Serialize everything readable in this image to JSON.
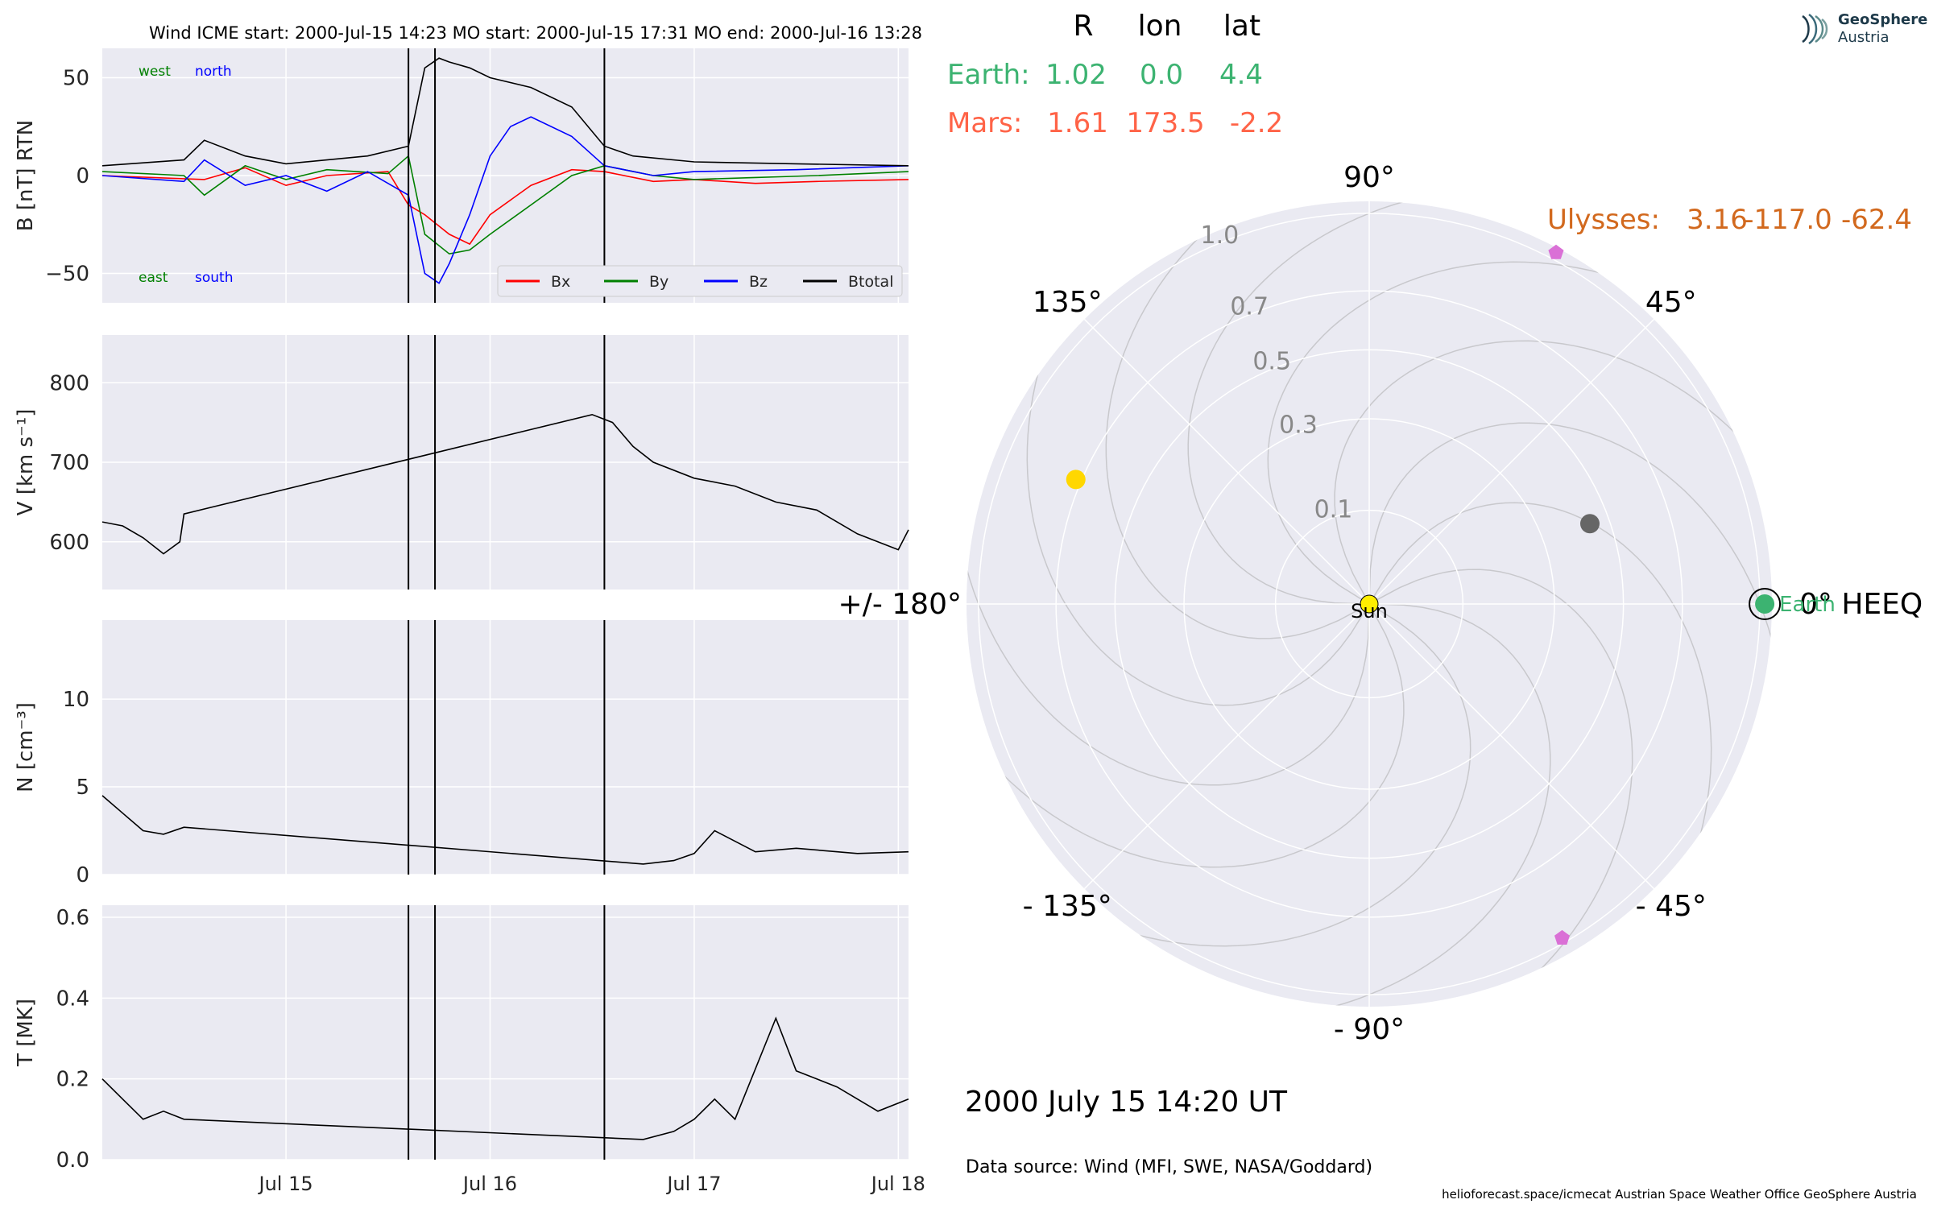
{
  "header": {
    "title": "Wind    ICME start: 2000-Jul-15 14:23   MO start: 2000-Jul-15 17:31   MO end: 2000-Jul-16 13:28",
    "date_ut": "2000 July 15  14:20 UT",
    "data_source": "Data source: Wind (MFI, SWE, NASA/Goddard)",
    "footer": "helioforecast.space/icmecat   Austrian Space Weather Office   GeoSphere Austria"
  },
  "logo": {
    "line1": "GeoSphere",
    "line2": "Austria",
    "icon": "geosphere-logo-icon"
  },
  "positions_table": {
    "columns": [
      "R",
      "lon",
      "lat"
    ],
    "rows": [
      {
        "name": "Earth:",
        "R": "1.02",
        "lon": "0.0",
        "lat": "4.4",
        "color": "#3cb371"
      },
      {
        "name": "Mars:",
        "R": "1.61",
        "lon": "173.5",
        "lat": "-2.2",
        "color": "#ff6347"
      }
    ],
    "ulysses": {
      "name": "Ulysses:",
      "R": "3.16",
      "lon": "-117.0",
      "lat": "-62.4",
      "color": "#d2691e"
    }
  },
  "chart_data": [
    {
      "type": "line",
      "panel": "B",
      "ylabel": "B [nT] RTN",
      "ylim": [
        -65,
        65
      ],
      "yticks": [
        -50,
        0,
        50
      ],
      "ytick_labels": [
        "−50",
        "0",
        "50"
      ],
      "xlim_days": [
        14.1,
        18.05
      ],
      "annotations": {
        "west": "west",
        "north": "north",
        "east": "east",
        "south": "south"
      },
      "legend": [
        "Bx",
        "By",
        "Bz",
        "Btotal"
      ],
      "legend_position": "lower-right",
      "grid": true,
      "series": [
        {
          "name": "Bx",
          "color": "#ff0000",
          "x": [
            14.1,
            14.6,
            14.8,
            15.0,
            15.2,
            15.5,
            15.6,
            15.68,
            15.8,
            15.9,
            16.0,
            16.2,
            16.4,
            16.56,
            16.8,
            17.0,
            17.3,
            17.6,
            18.05
          ],
          "y": [
            0,
            -2,
            4,
            -5,
            0,
            2,
            -15,
            -20,
            -30,
            -35,
            -20,
            -5,
            3,
            2,
            -3,
            -2,
            -4,
            -3,
            -2
          ]
        },
        {
          "name": "By",
          "color": "#008000",
          "x": [
            14.1,
            14.5,
            14.6,
            14.8,
            15.0,
            15.2,
            15.5,
            15.6,
            15.68,
            15.8,
            15.9,
            16.0,
            16.2,
            16.4,
            16.56,
            16.8,
            17.0,
            17.3,
            17.6,
            18.05
          ],
          "y": [
            2,
            0,
            -10,
            5,
            -2,
            3,
            1,
            10,
            -30,
            -40,
            -38,
            -30,
            -15,
            0,
            5,
            0,
            -2,
            -1,
            0,
            2
          ]
        },
        {
          "name": "Bz",
          "color": "#0000ff",
          "x": [
            14.1,
            14.5,
            14.6,
            14.8,
            15.0,
            15.2,
            15.4,
            15.6,
            15.68,
            15.75,
            15.8,
            15.9,
            16.0,
            16.1,
            16.2,
            16.4,
            16.56,
            16.8,
            17.0,
            17.5,
            18.05
          ],
          "y": [
            0,
            -3,
            8,
            -5,
            0,
            -8,
            2,
            -10,
            -50,
            -55,
            -45,
            -20,
            10,
            25,
            30,
            20,
            5,
            0,
            2,
            3,
            5
          ]
        },
        {
          "name": "Btotal",
          "color": "#000000",
          "x": [
            14.1,
            14.5,
            14.6,
            14.8,
            15.0,
            15.4,
            15.6,
            15.68,
            15.75,
            15.8,
            15.9,
            16.0,
            16.2,
            16.4,
            16.56,
            16.7,
            17.0,
            17.5,
            18.05
          ],
          "y": [
            5,
            8,
            18,
            10,
            6,
            10,
            15,
            55,
            60,
            58,
            55,
            50,
            45,
            35,
            15,
            10,
            7,
            6,
            5
          ]
        }
      ],
      "vlines_days": [
        15.6,
        15.73,
        16.56
      ]
    },
    {
      "type": "line",
      "panel": "V",
      "ylabel": "V [km s⁻¹]",
      "ylim": [
        540,
        860
      ],
      "yticks": [
        600,
        700,
        800
      ],
      "xlim_days": [
        14.1,
        18.05
      ],
      "grid": true,
      "series": [
        {
          "name": "V",
          "color": "#000000",
          "x": [
            14.1,
            14.2,
            14.3,
            14.4,
            14.48,
            14.5,
            16.5,
            16.6,
            16.7,
            16.8,
            17.0,
            17.2,
            17.4,
            17.6,
            17.8,
            18.0,
            18.05
          ],
          "y": [
            625,
            620,
            605,
            585,
            600,
            635,
            760,
            750,
            720,
            700,
            680,
            670,
            650,
            640,
            610,
            590,
            615
          ]
        }
      ],
      "vlines_days": [
        15.6,
        15.73,
        16.56
      ]
    },
    {
      "type": "line",
      "panel": "N",
      "ylabel": "N [cm⁻³]",
      "ylim": [
        0,
        14.5
      ],
      "yticks": [
        0,
        5,
        10
      ],
      "xlim_days": [
        14.1,
        18.05
      ],
      "grid": true,
      "series": [
        {
          "name": "N",
          "color": "#000000",
          "x": [
            14.1,
            14.2,
            14.3,
            14.4,
            14.5,
            16.75,
            16.9,
            17.0,
            17.1,
            17.3,
            17.5,
            17.8,
            18.05
          ],
          "y": [
            4.5,
            3.5,
            2.5,
            2.3,
            2.7,
            0.6,
            0.8,
            1.2,
            2.5,
            1.3,
            1.5,
            1.2,
            1.3
          ]
        }
      ],
      "vlines_days": [
        15.6,
        15.73,
        16.56
      ]
    },
    {
      "type": "line",
      "panel": "T",
      "ylabel": "T [MK]",
      "ylim": [
        0,
        0.63
      ],
      "yticks": [
        0.0,
        0.2,
        0.4,
        0.6
      ],
      "ytick_labels": [
        "0.0",
        "0.2",
        "0.4",
        "0.6"
      ],
      "xlim_days": [
        14.1,
        18.05
      ],
      "xtick_days": [
        15.0,
        16.0,
        17.0,
        18.0
      ],
      "xtick_labels": [
        "Jul 15",
        "Jul 16",
        "Jul 17",
        "Jul 18"
      ],
      "grid": true,
      "series": [
        {
          "name": "T",
          "color": "#000000",
          "x": [
            14.1,
            14.2,
            14.3,
            14.4,
            14.5,
            16.75,
            16.9,
            17.0,
            17.1,
            17.2,
            17.4,
            17.5,
            17.7,
            17.9,
            18.05
          ],
          "y": [
            0.2,
            0.15,
            0.1,
            0.12,
            0.1,
            0.05,
            0.07,
            0.1,
            0.15,
            0.1,
            0.35,
            0.22,
            0.18,
            0.12,
            0.15
          ]
        }
      ],
      "vlines_days": [
        15.6,
        15.73,
        16.56
      ]
    },
    {
      "type": "scatter",
      "panel": "polar",
      "rlabels": [
        "0.1",
        "0.3",
        "0.5",
        "0.7",
        "1.0"
      ],
      "r_ticks": [
        0.1,
        0.3,
        0.5,
        0.7,
        1.0
      ],
      "angle_labels": [
        {
          "text": "0° HEEQ",
          "deg": 0
        },
        {
          "text": "45°",
          "deg": 45
        },
        {
          "text": "90°",
          "deg": 90
        },
        {
          "text": "135°",
          "deg": 135
        },
        {
          "text": "+/- 180°",
          "deg": 180
        },
        {
          "text": "- 135°",
          "deg": -135
        },
        {
          "text": "- 90°",
          "deg": -90
        },
        {
          "text": "- 45°",
          "deg": -45
        }
      ],
      "bodies": [
        {
          "name": "Sun",
          "label": "Sun",
          "r": 0.0,
          "lon": 0,
          "color": "#ffee00"
        },
        {
          "name": "Earth",
          "label": "Earth",
          "r": 1.02,
          "lon": 0.0,
          "color": "#3cb371"
        },
        {
          "name": "Mercury",
          "label": "",
          "r": 0.44,
          "lon": 20.0,
          "color": "#666666"
        },
        {
          "name": "Venus",
          "label": "",
          "r": 0.72,
          "lon": 157.0,
          "color": "#ffd700"
        },
        {
          "name": "Marker-1",
          "label": "",
          "r": 1.03,
          "lon": 62.0,
          "color": "#da70d6"
        },
        {
          "name": "Marker-2",
          "label": "",
          "r": 0.98,
          "lon": -60.0,
          "color": "#da70d6"
        }
      ]
    }
  ]
}
